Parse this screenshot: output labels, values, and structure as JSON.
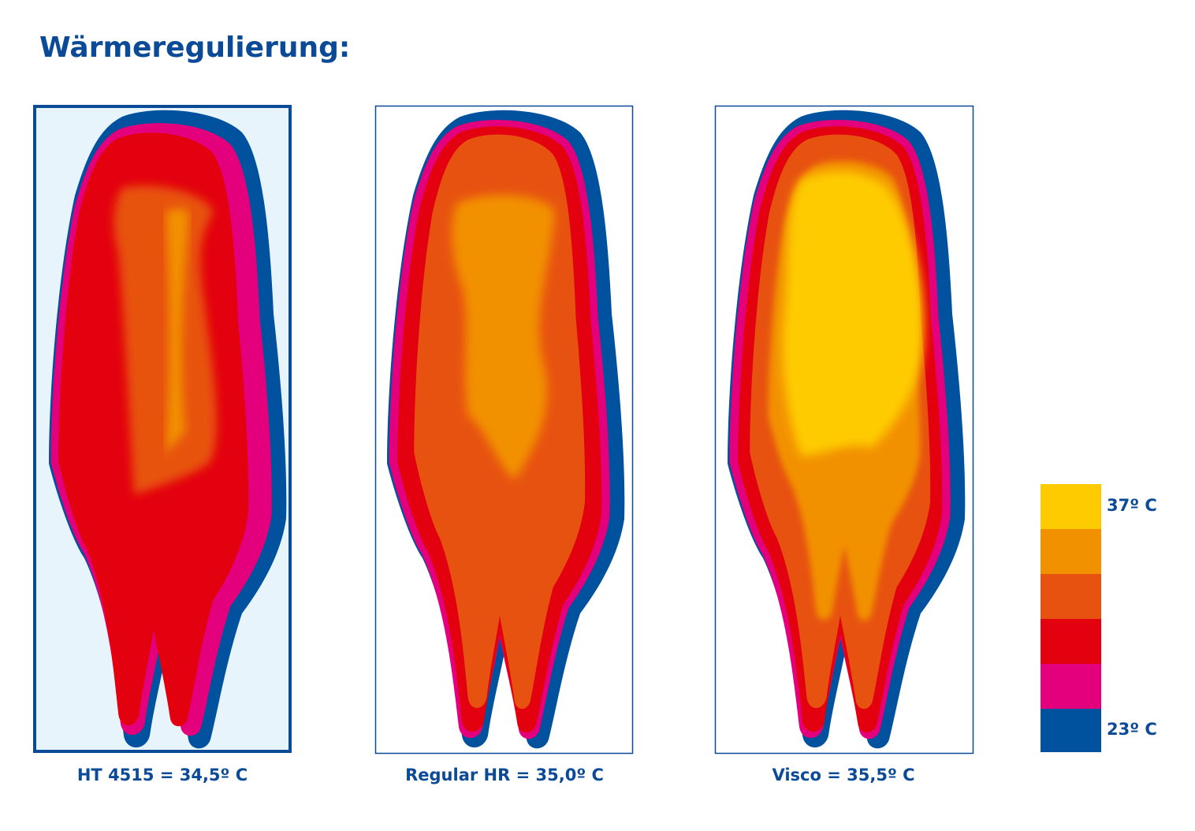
{
  "title": "Wärmeregulierung:",
  "panels": [
    {
      "caption": "HT 4515 = 34,5º C"
    },
    {
      "caption": "Regular HR = 35,0º C"
    },
    {
      "caption": "Visco = 35,5º C"
    }
  ],
  "legend": {
    "high": "37º C",
    "low": "23º C"
  }
}
